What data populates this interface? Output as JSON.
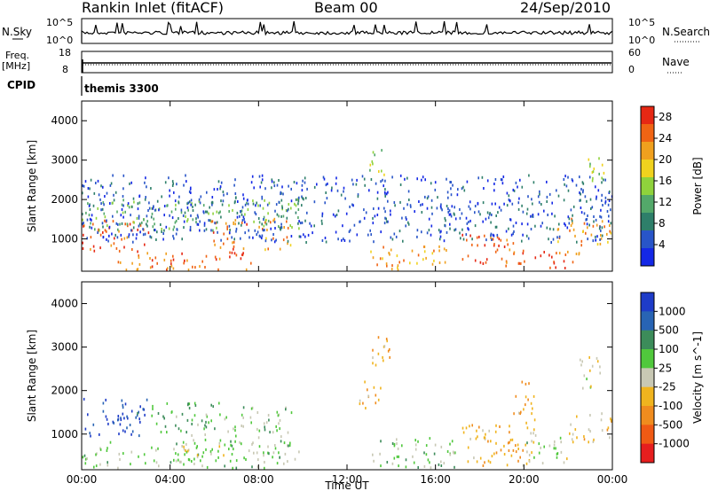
{
  "header": {
    "station": "Rankin Inlet (fitACF)",
    "beam": "Beam 00",
    "date": "24/Sep/2010"
  },
  "top_panels": {
    "nsky_label": "N.Sky",
    "nsky_ticks": [
      "10^5",
      "10^0"
    ],
    "nsearch_label": "N.Search",
    "nsearch_ticks": [
      "10^5",
      "10^0"
    ],
    "freq_label_1": "Freq.",
    "freq_label_2": "[MHz]",
    "freq_ticks": [
      "18",
      "8"
    ],
    "nave_label": "Nave",
    "nave_ticks": [
      "60",
      "0"
    ],
    "cpid_label": "CPID",
    "cpid_value": "themis 3300"
  },
  "x_axis": {
    "label": "Time UT",
    "ticks": [
      "00:00",
      "04:00",
      "08:00",
      "12:00",
      "16:00",
      "20:00",
      "00:00"
    ]
  },
  "colors": {
    "power": [
      "#1428e6",
      "#2855c8",
      "#2e7f6a",
      "#53a86a",
      "#8fd23c",
      "#f0d21e",
      "#f0a01e",
      "#f06414",
      "#e62814"
    ],
    "velocity": [
      "#e61e1e",
      "#f05a14",
      "#f08c1e",
      "#f0b41e",
      "#c8c8b4",
      "#50c83c",
      "#3c8c5a",
      "#2864b4",
      "#1e3cc8"
    ]
  },
  "chart_data": [
    {
      "type": "heatmap",
      "title": "Power",
      "xlabel": "Time UT",
      "ylabel": "Slant Range [km]",
      "xlim": [
        "00:00",
        "24:00"
      ],
      "ylim": [
        180,
        4500
      ],
      "yticks": [
        "1000",
        "2000",
        "3000",
        "4000"
      ],
      "colorbar": {
        "label": "Power [dB]",
        "ticks": [
          "4",
          "8",
          "12",
          "16",
          "20",
          "24",
          "28"
        ],
        "range": [
          0,
          30
        ]
      },
      "regions": [
        {
          "t0": 0.0,
          "t1": 3.0,
          "r0": 650,
          "r1": 1450,
          "value": 26
        },
        {
          "t0": 1.5,
          "t1": 4.0,
          "r0": 200,
          "r1": 650,
          "value": 24
        },
        {
          "t0": 4.0,
          "t1": 8.0,
          "r0": 200,
          "r1": 650,
          "value": 26
        },
        {
          "t0": 5.8,
          "t1": 7.5,
          "r0": 700,
          "r1": 1500,
          "value": 24
        },
        {
          "t0": 8.0,
          "t1": 9.5,
          "r0": 700,
          "r1": 1500,
          "value": 22
        },
        {
          "t0": 0.0,
          "t1": 10.0,
          "r0": 1200,
          "r1": 2000,
          "value": 12
        },
        {
          "t0": 13.0,
          "t1": 16.5,
          "r0": 200,
          "r1": 800,
          "value": 22
        },
        {
          "t0": 17.0,
          "t1": 19.5,
          "r0": 300,
          "r1": 1100,
          "value": 26
        },
        {
          "t0": 19.5,
          "t1": 22.5,
          "r0": 200,
          "r1": 700,
          "value": 26
        },
        {
          "t0": 21.5,
          "t1": 24.0,
          "r0": 800,
          "r1": 1500,
          "value": 22
        },
        {
          "t0": 13.0,
          "t1": 13.8,
          "r0": 2600,
          "r1": 3300,
          "value": 14
        },
        {
          "t0": 22.8,
          "t1": 23.6,
          "r0": 2200,
          "r1": 3100,
          "value": 16
        },
        {
          "t0": 0.0,
          "t1": 24.0,
          "r0": 900,
          "r1": 2600,
          "value": 5
        }
      ]
    },
    {
      "type": "heatmap",
      "title": "Velocity",
      "xlabel": "Time UT",
      "ylabel": "Slant Range [km]",
      "xlim": [
        "00:00",
        "24:00"
      ],
      "ylim": [
        180,
        4500
      ],
      "yticks": [
        "1000",
        "2000",
        "3000",
        "4000"
      ],
      "colorbar": {
        "label": "Velocity [m s^-1]",
        "ticks": [
          "1000",
          "500",
          "100",
          "25",
          "-25",
          "-100",
          "-500",
          "-1000"
        ],
        "range": [
          -1000,
          1000
        ]
      },
      "regions": [
        {
          "t0": 0.0,
          "t1": 3.0,
          "r0": 900,
          "r1": 1800,
          "value": 800
        },
        {
          "t0": 3.0,
          "t1": 6.5,
          "r0": 1000,
          "r1": 1700,
          "value": 300
        },
        {
          "t0": 6.5,
          "t1": 9.5,
          "r0": 700,
          "r1": 1600,
          "value": 200
        },
        {
          "t0": 0.0,
          "t1": 10.0,
          "r0": 200,
          "r1": 800,
          "value": 150
        },
        {
          "t0": 4.5,
          "t1": 6.5,
          "r0": 500,
          "r1": 1000,
          "value": 0
        },
        {
          "t0": 13.0,
          "t1": 14.0,
          "r0": 2500,
          "r1": 3300,
          "value": -300
        },
        {
          "t0": 12.5,
          "t1": 13.5,
          "r0": 1500,
          "r1": 2200,
          "value": -300
        },
        {
          "t0": 13.0,
          "t1": 17.0,
          "r0": 200,
          "r1": 900,
          "value": 150
        },
        {
          "t0": 17.0,
          "t1": 20.5,
          "r0": 200,
          "r1": 1200,
          "value": -300
        },
        {
          "t0": 19.5,
          "t1": 20.5,
          "r0": 1200,
          "r1": 2200,
          "value": -300
        },
        {
          "t0": 20.0,
          "t1": 22.0,
          "r0": 300,
          "r1": 1000,
          "value": 100
        },
        {
          "t0": 22.0,
          "t1": 24.0,
          "r0": 800,
          "r1": 1500,
          "value": -150
        },
        {
          "t0": 22.5,
          "t1": 23.5,
          "r0": 2000,
          "r1": 2800,
          "value": 0
        }
      ]
    }
  ]
}
